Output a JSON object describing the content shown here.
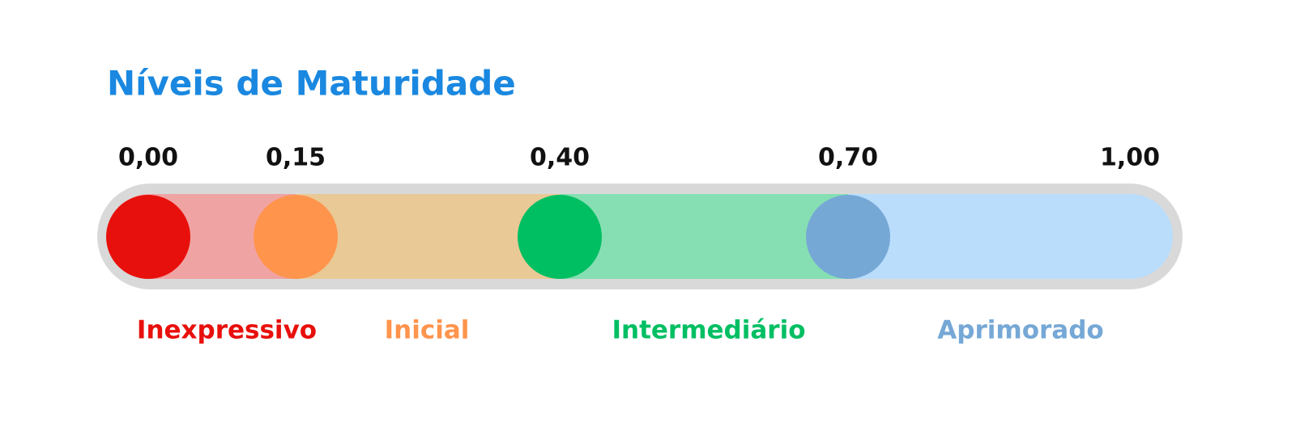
{
  "title": "Níveis de Maturidade",
  "thresholds": [
    "0,00",
    "0,15",
    "0,40",
    "0,70",
    "1,00"
  ],
  "levels": [
    {
      "name": "Inexpressivo",
      "color": "#e8100c"
    },
    {
      "name": "Inicial",
      "color": "#ff944d"
    },
    {
      "name": "Intermediário",
      "color": "#00bf63"
    },
    {
      "name": "Aprimorado",
      "color": "#76a8d6"
    }
  ]
}
